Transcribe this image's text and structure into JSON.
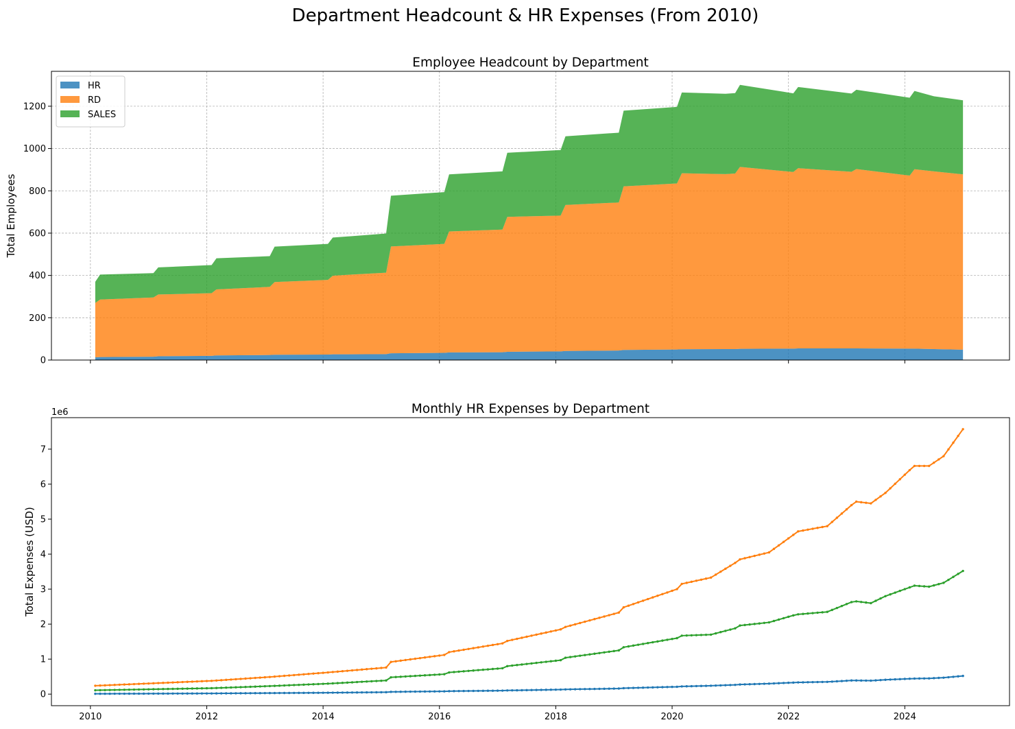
{
  "suptitle": "Department Headcount & HR Expenses (From 2010)",
  "colors": {
    "HR": "#1f77b4",
    "RD": "#ff7f0e",
    "SALES": "#2ca02c"
  },
  "chart_data": [
    {
      "type": "area",
      "stacked": true,
      "title": "Employee Headcount by Department",
      "xlabel": "",
      "ylabel": "Total Employees",
      "x_axis": "date",
      "xlim": [
        2009.33,
        2025.8
      ],
      "ylim": [
        0,
        1365
      ],
      "yticks": [
        0,
        200,
        400,
        600,
        800,
        1000,
        1200
      ],
      "xticks": [
        2010,
        2012,
        2014,
        2016,
        2018,
        2020,
        2022,
        2024
      ],
      "show_xtick_labels": false,
      "grid": true,
      "legend": "top-left",
      "x": [
        "2010-02",
        "2010-03",
        "2011-02",
        "2011-03",
        "2012-02",
        "2012-03",
        "2013-02",
        "2013-03",
        "2014-02",
        "2014-03",
        "2015-02",
        "2015-03",
        "2016-02",
        "2016-03",
        "2017-02",
        "2017-03",
        "2018-02",
        "2018-03",
        "2019-02",
        "2019-03",
        "2020-02",
        "2020-03",
        "2020-12",
        "2021-02",
        "2021-03",
        "2022-02",
        "2022-03",
        "2023-02",
        "2023-03",
        "2024-02",
        "2024-03",
        "2024-07",
        "2025-01"
      ],
      "series": [
        {
          "name": "HR",
          "values": [
            13,
            14,
            16,
            18,
            20,
            22,
            24,
            25,
            26,
            27,
            28,
            32,
            34,
            36,
            37,
            39,
            41,
            43,
            45,
            48,
            50,
            51,
            52,
            52,
            53,
            54,
            55,
            55,
            55,
            54,
            54,
            52,
            49
          ]
        },
        {
          "name": "RD",
          "values": [
            257,
            272,
            280,
            292,
            296,
            312,
            322,
            344,
            353,
            372,
            385,
            505,
            515,
            572,
            580,
            638,
            642,
            690,
            700,
            773,
            785,
            832,
            827,
            830,
            860,
            835,
            852,
            835,
            848,
            818,
            848,
            840,
            829
          ]
        },
        {
          "name": "SALES",
          "values": [
            100,
            118,
            115,
            128,
            133,
            147,
            145,
            167,
            170,
            180,
            185,
            240,
            245,
            270,
            275,
            303,
            310,
            325,
            330,
            358,
            362,
            382,
            380,
            380,
            388,
            372,
            384,
            370,
            375,
            368,
            370,
            355,
            350
          ]
        }
      ]
    },
    {
      "type": "line",
      "title": "Monthly HR Expenses by Department",
      "xlabel": "",
      "ylabel": "Total Expenses (USD)",
      "offset_text": "1e6",
      "x_axis": "date",
      "xlim": [
        2009.33,
        2025.8
      ],
      "ylim": [
        -0.33,
        7.9
      ],
      "yticks": [
        0,
        1,
        2,
        3,
        4,
        5,
        6,
        7
      ],
      "xticks": [
        2010,
        2012,
        2014,
        2016,
        2018,
        2020,
        2022,
        2024
      ],
      "grid": false,
      "legend": "none",
      "markers": true,
      "x_start": "2010-02",
      "x_end": "2025-01",
      "anchor_x": [
        "2010-02",
        "2011-02",
        "2012-02",
        "2013-02",
        "2014-02",
        "2015-02",
        "2015-03",
        "2016-02",
        "2016-03",
        "2017-02",
        "2017-03",
        "2018-02",
        "2018-03",
        "2019-02",
        "2019-03",
        "2020-02",
        "2020-03",
        "2020-09",
        "2021-02",
        "2021-03",
        "2021-09",
        "2022-02",
        "2022-03",
        "2022-09",
        "2023-02",
        "2023-03",
        "2023-06",
        "2023-09",
        "2024-02",
        "2024-03",
        "2024-06",
        "2024-09",
        "2025-01"
      ],
      "series": [
        {
          "name": "HR",
          "values": [
            0.01,
            0.015,
            0.02,
            0.03,
            0.04,
            0.055,
            0.065,
            0.08,
            0.085,
            0.1,
            0.105,
            0.13,
            0.135,
            0.16,
            0.17,
            0.21,
            0.22,
            0.24,
            0.265,
            0.275,
            0.3,
            0.33,
            0.335,
            0.35,
            0.39,
            0.39,
            0.385,
            0.41,
            0.44,
            0.445,
            0.45,
            0.47,
            0.52
          ]
        },
        {
          "name": "RD",
          "values": [
            0.24,
            0.31,
            0.38,
            0.49,
            0.62,
            0.76,
            0.92,
            1.12,
            1.2,
            1.45,
            1.52,
            1.85,
            1.92,
            2.33,
            2.48,
            3.0,
            3.15,
            3.33,
            3.75,
            3.85,
            4.05,
            4.55,
            4.65,
            4.8,
            5.4,
            5.5,
            5.45,
            5.75,
            6.4,
            6.52,
            6.52,
            6.8,
            7.57
          ]
        },
        {
          "name": "SALES",
          "values": [
            0.11,
            0.14,
            0.17,
            0.23,
            0.3,
            0.39,
            0.48,
            0.57,
            0.62,
            0.74,
            0.8,
            0.97,
            1.04,
            1.25,
            1.34,
            1.6,
            1.67,
            1.7,
            1.88,
            1.96,
            2.05,
            2.25,
            2.28,
            2.35,
            2.63,
            2.65,
            2.6,
            2.8,
            3.05,
            3.1,
            3.07,
            3.18,
            3.52
          ]
        }
      ]
    }
  ]
}
